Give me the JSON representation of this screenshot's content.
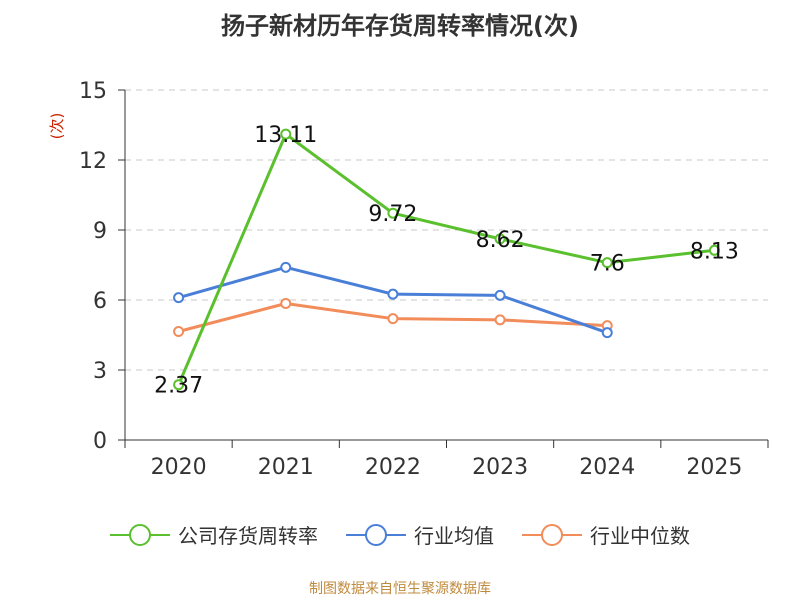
{
  "page": {
    "title": "扬子新材历年存货周转率情况(次)",
    "footer": "制图数据来自恒生聚源数据库"
  },
  "chart_data": {
    "type": "line",
    "title": "扬子新材历年存货周转率情况(次)",
    "ylabel": "(次)",
    "xlabel": "",
    "categories": [
      "2020",
      "2021",
      "2022",
      "2023",
      "2024",
      "2025"
    ],
    "ylim": [
      0,
      15
    ],
    "yticks": [
      0,
      3,
      6,
      9,
      12,
      15
    ],
    "grid": true,
    "legend_position": "bottom",
    "series": [
      {
        "name": "公司存货周转率",
        "color": "#5ac02e",
        "values": [
          2.37,
          13.11,
          9.72,
          8.62,
          7.6,
          8.13
        ],
        "labels": [
          "2.37",
          "13.11",
          "9.72",
          "8.62",
          "7.6",
          "8.13"
        ]
      },
      {
        "name": "行业均值",
        "color": "#4a7fd8",
        "values": [
          6.1,
          7.4,
          6.25,
          6.2,
          4.6,
          null
        ]
      },
      {
        "name": "行业中位数",
        "color": "#f28c5a",
        "values": [
          4.65,
          5.85,
          5.2,
          5.15,
          4.9,
          null
        ]
      }
    ]
  }
}
